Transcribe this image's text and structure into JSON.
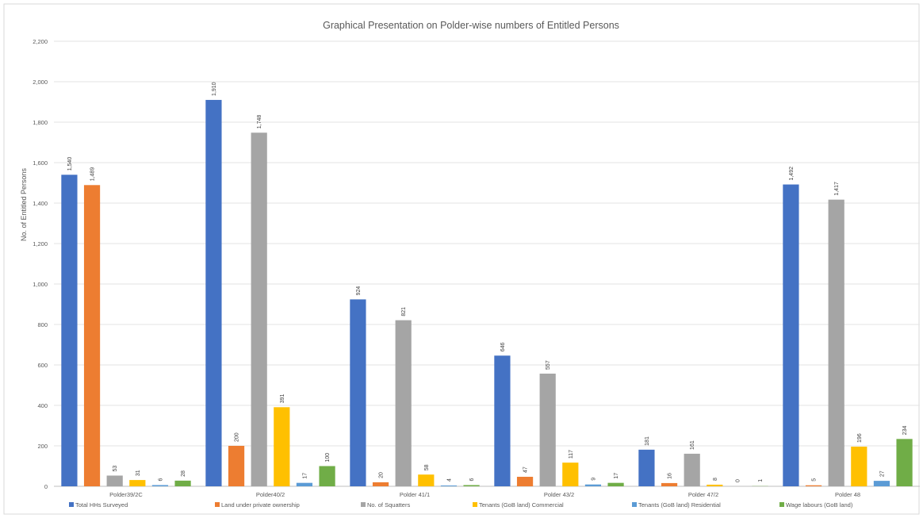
{
  "chart_data": {
    "type": "bar",
    "title": "Graphical Presentation on Polder-wise numbers of Entitled Persons",
    "ylabel": "No. of Entitled Persons",
    "xlabel": "",
    "ylim": [
      0,
      2200
    ],
    "y_ticks": [
      "0",
      "200",
      "400",
      "600",
      "800",
      "1,000",
      "1,200",
      "1,400",
      "1,600",
      "1,800",
      "2,000",
      "2,200"
    ],
    "grid": true,
    "legend_position": "bottom",
    "categories": [
      "Polder39/2C",
      "Polder40/2",
      "Polder 41/1",
      "Polder 43/2",
      "Polder 47/2",
      "Polder 48"
    ],
    "series": [
      {
        "name": "Total HHs Surveyed",
        "color": "#4472C4",
        "values": [
          1540,
          1910,
          924,
          646,
          181,
          1492
        ],
        "labels": [
          "1,540",
          "1,910",
          "924",
          "646",
          "181",
          "1,492"
        ]
      },
      {
        "name": "Land under private ownership",
        "color": "#ED7D31",
        "values": [
          1489,
          200,
          20,
          47,
          16,
          5
        ],
        "labels": [
          "1,489",
          "200",
          "20",
          "47",
          "16",
          "5"
        ]
      },
      {
        "name": "No. of Squatters",
        "color": "#A5A5A5",
        "values": [
          53,
          1748,
          821,
          557,
          161,
          1417
        ],
        "labels": [
          "53",
          "1,748",
          "821",
          "557",
          "161",
          "1,417"
        ]
      },
      {
        "name": "Tenants (GoB land) Commercial",
        "color": "#FFC000",
        "values": [
          31,
          391,
          58,
          117,
          8,
          196
        ],
        "labels": [
          "31",
          "391",
          "58",
          "117",
          "8",
          "196"
        ]
      },
      {
        "name": "Tenants (GoB land) Residential",
        "color": "#5B9BD5",
        "values": [
          6,
          17,
          4,
          9,
          0,
          27
        ],
        "labels": [
          "6",
          "17",
          "4",
          "9",
          "0",
          "27"
        ]
      },
      {
        "name": "Wage labours (GoB land)",
        "color": "#70AD47",
        "values": [
          28,
          100,
          6,
          17,
          1,
          234
        ],
        "labels": [
          "28",
          "100",
          "6",
          "17",
          "1",
          "234"
        ]
      }
    ]
  }
}
